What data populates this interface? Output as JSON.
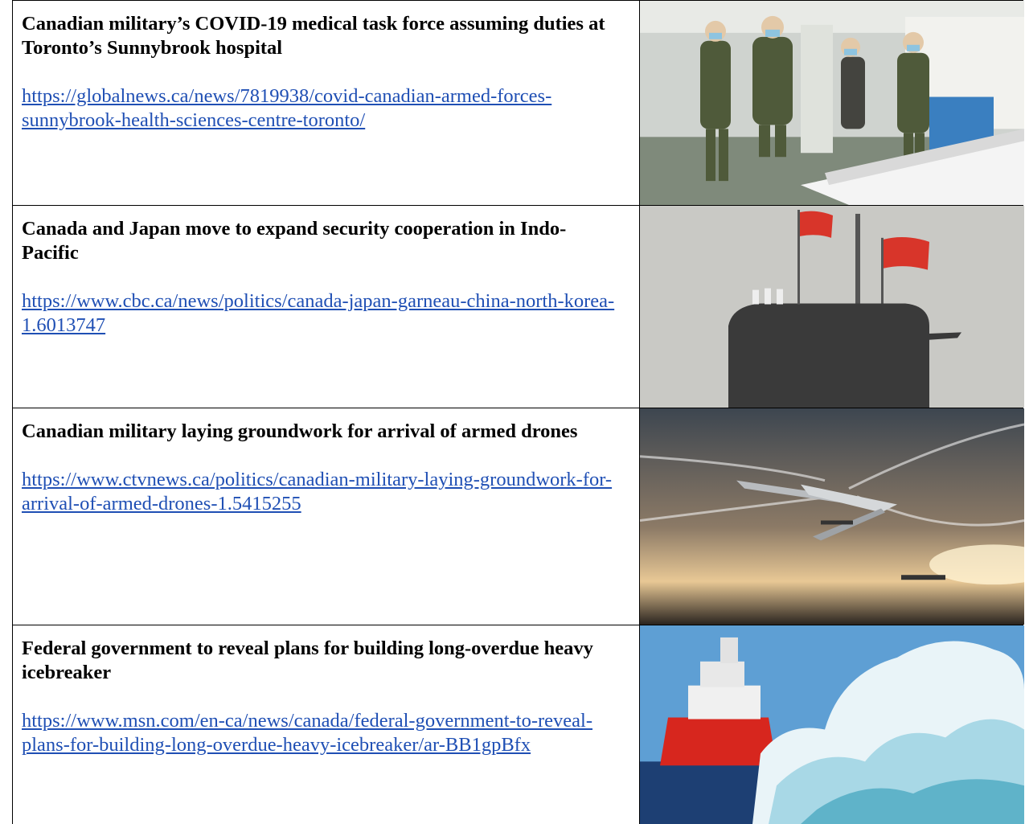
{
  "table": {
    "rows": [
      {
        "title": "Canadian military’s COVID-19 medical task force assuming duties at Toronto’s Sunnybrook hospital",
        "url": "https://globalnews.ca/news/7819938/covid-canadian-armed-forces-sunnybrook-health-sciences-centre-toronto/"
      },
      {
        "title": "Canada and Japan move to expand security cooperation in Indo-Pacific",
        "url": "https://www.cbc.ca/news/politics/canada-japan-garneau-china-north-korea-1.6013747"
      },
      {
        "title": "Canadian military laying groundwork for arrival of armed drones",
        "url": "https://www.ctvnews.ca/politics/canadian-military-laying-groundwork-for-arrival-of-armed-drones-1.5415255"
      },
      {
        "title": "Federal government to reveal plans for building long-overdue heavy icebreaker",
        "url": "https://www.msn.com/en-ca/news/canada/federal-government-to-reveal-plans-for-building-long-overdue-heavy-icebreaker/ar-BB1gpBfx"
      }
    ]
  }
}
